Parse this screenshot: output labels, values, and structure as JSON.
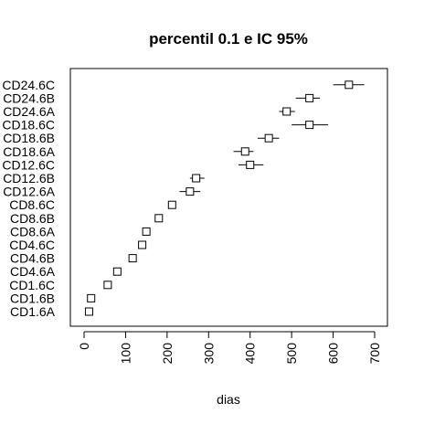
{
  "chart_data": {
    "type": "scatter",
    "title": "percentil 0.1 e IC 95%",
    "xlabel": "dias",
    "ylabel": "",
    "xlim": [
      0,
      700
    ],
    "xticks": [
      0,
      100,
      200,
      300,
      400,
      500,
      600,
      700
    ],
    "xtick_labels": [
      "0",
      "100",
      "200",
      "300",
      "400",
      "500",
      "600",
      "700"
    ],
    "grid": false,
    "legend": "none",
    "marker": "open-square",
    "colors": {
      "marks": "#000000",
      "background": "#ffffff"
    },
    "categories": [
      "CD1.6A",
      "CD1.6B",
      "CD1.6C",
      "CD4.6A",
      "CD4.6B",
      "CD4.6C",
      "CD8.6A",
      "CD8.6B",
      "CD8.6C",
      "CD12.6A",
      "CD12.6B",
      "CD12.6C",
      "CD18.6A",
      "CD18.6B",
      "CD18.6C",
      "CD24.6A",
      "CD24.6B",
      "CD24.6C"
    ],
    "estimates": [
      12,
      17,
      57,
      80,
      117,
      140,
      150,
      180,
      212,
      255,
      270,
      400,
      388,
      445,
      543,
      488,
      543,
      638
    ],
    "ci_lower": [
      12,
      17,
      57,
      80,
      117,
      140,
      150,
      180,
      212,
      230,
      255,
      372,
      360,
      418,
      500,
      470,
      510,
      600
    ],
    "ci_upper": [
      12,
      17,
      57,
      80,
      117,
      140,
      150,
      180,
      212,
      280,
      290,
      432,
      408,
      470,
      588,
      508,
      568,
      675
    ]
  }
}
